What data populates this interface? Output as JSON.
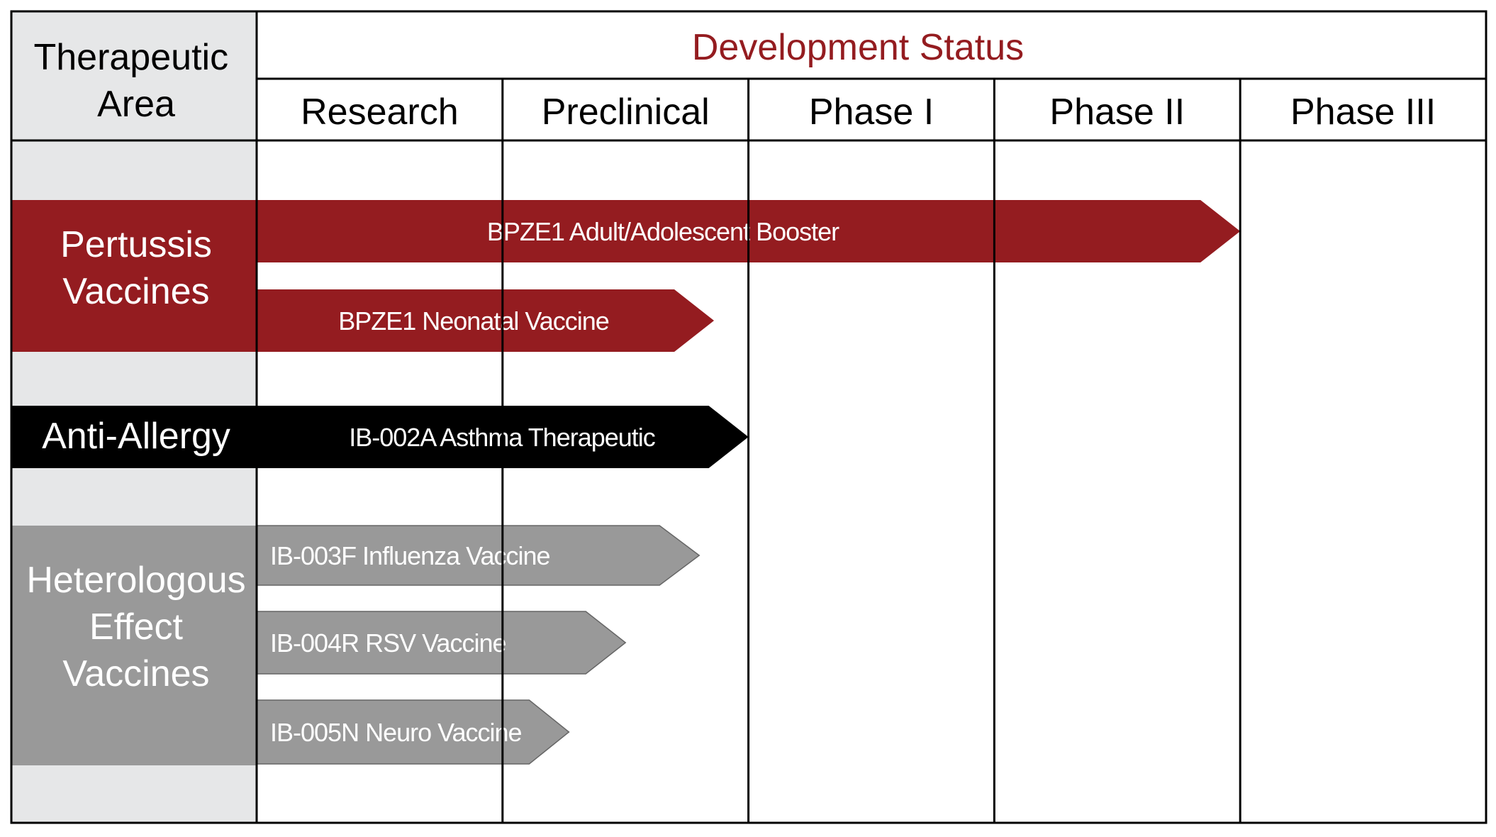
{
  "header": {
    "area_label": "Therapeutic Area",
    "area_label_line1": "Therapeutic",
    "area_label_line2": "Area",
    "status_label": "Development Status",
    "stages": [
      "Research",
      "Preclinical",
      "Phase I",
      "Phase II",
      "Phase III"
    ]
  },
  "areas": [
    {
      "id": "pertussis",
      "lines": [
        "Pertussis",
        "Vaccines"
      ],
      "color": "#941c20",
      "text_color": "#ffffff"
    },
    {
      "id": "allergy",
      "lines": [
        "Anti-Allergy"
      ],
      "color": "#000000",
      "text_color": "#ffffff"
    },
    {
      "id": "heterologous",
      "lines": [
        "Heterologous",
        "Effect",
        "Vaccines"
      ],
      "color": "#999999",
      "text_color": "#ffffff"
    }
  ],
  "programs": [
    {
      "name": "BPZE1 Adult/Adolescent Booster",
      "area": "pertussis",
      "stage_reached": "Phase II",
      "progress_stages": 4.0,
      "color": "#941c20"
    },
    {
      "name": "BPZE1 Neonatal Vaccine",
      "area": "pertussis",
      "stage_reached": "Preclinical",
      "progress_stages": 1.86,
      "color": "#941c20"
    },
    {
      "name": "IB-002A Asthma Therapeutic",
      "area": "allergy",
      "stage_reached": "Preclinical",
      "progress_stages": 2.0,
      "color": "#000000"
    },
    {
      "name": "IB-003F Influenza Vaccine",
      "area": "heterologous",
      "stage_reached": "Preclinical",
      "progress_stages": 1.8,
      "color": "#999999"
    },
    {
      "name": "IB-004R RSV Vaccine",
      "area": "heterologous",
      "stage_reached": "Preclinical",
      "progress_stages": 1.5,
      "color": "#999999"
    },
    {
      "name": "IB-005N Neuro Vaccine",
      "area": "heterologous",
      "stage_reached": "Preclinical",
      "progress_stages": 1.27,
      "color": "#999999"
    }
  ],
  "colors": {
    "accent": "#941c20",
    "left_column_bg": "#e6e7e8",
    "grid": "#000000"
  }
}
